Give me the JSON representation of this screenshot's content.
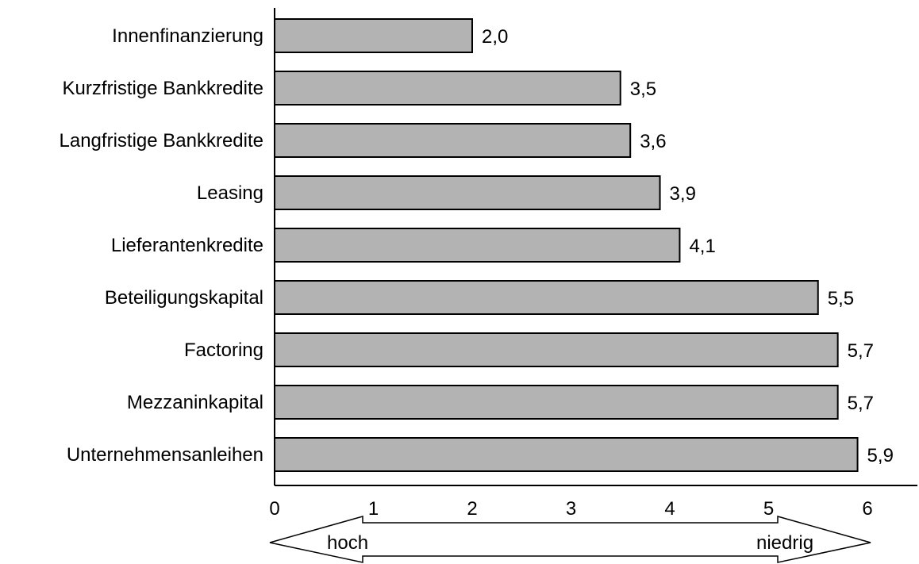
{
  "chart_data": {
    "type": "bar",
    "orientation": "horizontal",
    "categories": [
      "Innenfinanzierung",
      "Kurzfristige Bankkredite",
      "Langfristige Bankkredite",
      "Leasing",
      "Lieferantenkredite",
      "Beteiligungskapital",
      "Factoring",
      "Mezzaninkapital",
      "Unternehmensanleihen"
    ],
    "values": [
      2.0,
      3.5,
      3.6,
      3.9,
      4.1,
      5.5,
      5.7,
      5.7,
      5.9
    ],
    "value_labels": [
      "2,0",
      "3,5",
      "3,6",
      "3,9",
      "4,1",
      "5,5",
      "5,7",
      "5,7",
      "5,9"
    ],
    "xlim": [
      0,
      6.5
    ],
    "xticks": [
      0,
      1,
      2,
      3,
      4,
      5,
      6
    ],
    "tick_labels": [
      "0",
      "1",
      "2",
      "3",
      "4",
      "5",
      "6"
    ],
    "grid": false,
    "bar_color": "#b3b3b3",
    "edge_color": "#000000",
    "scale_arrow": {
      "left_label": "hoch",
      "right_label": "niedrig"
    }
  }
}
